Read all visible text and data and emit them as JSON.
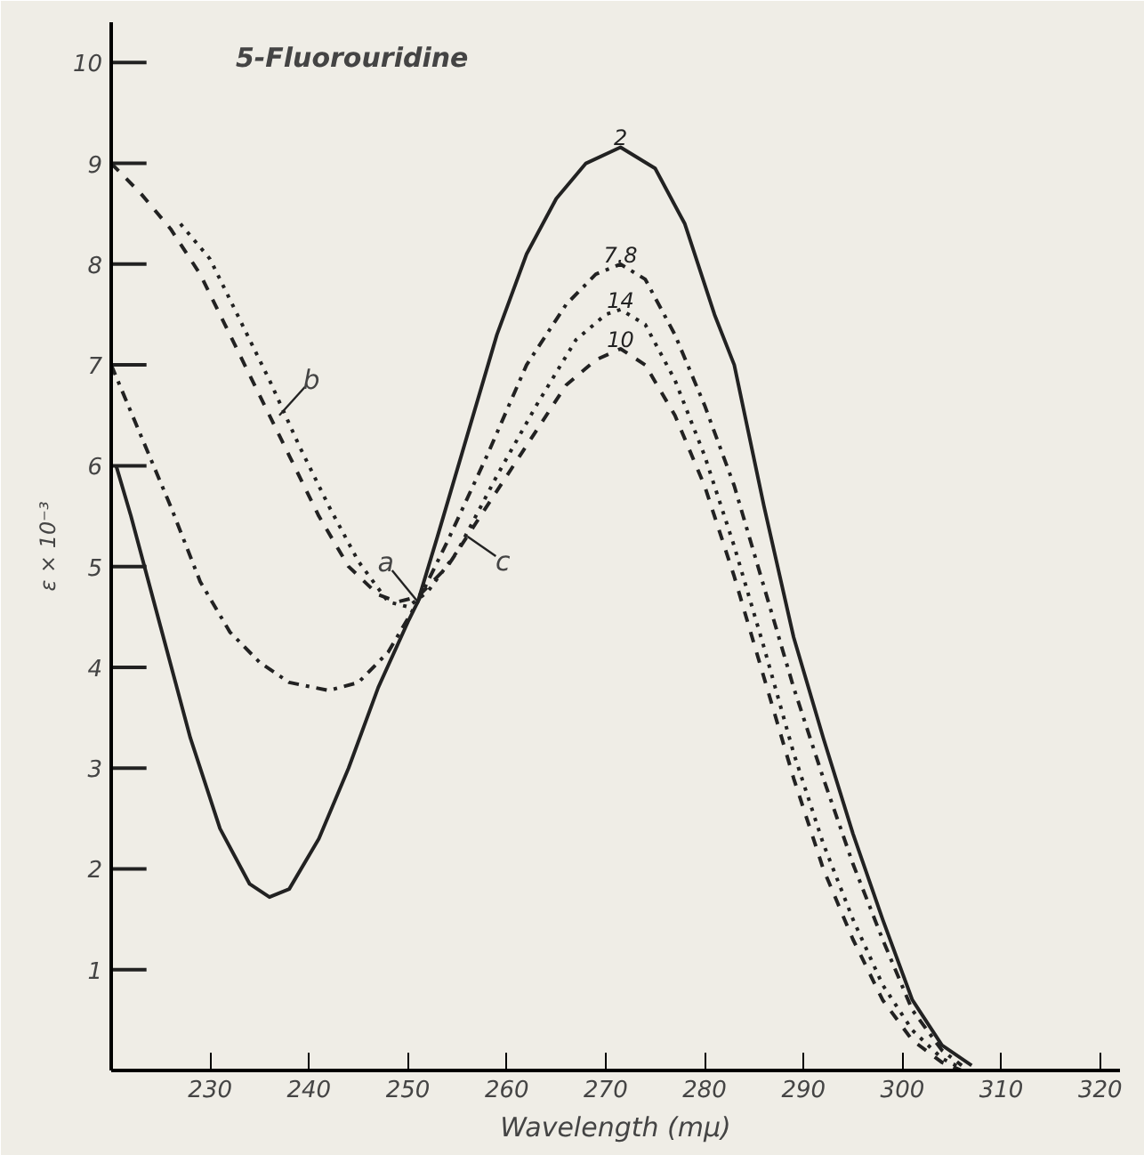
{
  "chart_data": {
    "type": "line",
    "title": "5-Fluorouridine",
    "xlabel": "Wavelength (mμ)",
    "ylabel": "ε × 10⁻³",
    "xlim": [
      220,
      322
    ],
    "ylim": [
      0,
      10.4
    ],
    "xticks": [
      230,
      240,
      250,
      260,
      270,
      280,
      290,
      300,
      310,
      320
    ],
    "yticks": [
      1,
      2,
      3,
      4,
      5,
      6,
      7,
      8,
      9,
      10
    ],
    "grid": false,
    "marker": "none",
    "annotations": [
      {
        "text": "a",
        "x": 251,
        "y": 4.65
      },
      {
        "text": "b",
        "x": 237,
        "y": 6.5
      },
      {
        "text": "c",
        "x": 256,
        "y": 5.3
      }
    ],
    "series": [
      {
        "name": "2",
        "color": "#222222",
        "line_style": "solid",
        "x": [
          220.5,
          222,
          225,
          228,
          231,
          234,
          236,
          238,
          241,
          244,
          247,
          250,
          251,
          253,
          256,
          259,
          262,
          265,
          268,
          271.5,
          275,
          278,
          281,
          283,
          286,
          289,
          292,
          295,
          298,
          301,
          304,
          307
        ],
        "values": [
          6.0,
          5.5,
          4.4,
          3.3,
          2.4,
          1.85,
          1.72,
          1.8,
          2.3,
          3.0,
          3.8,
          4.45,
          4.65,
          5.3,
          6.3,
          7.3,
          8.1,
          8.65,
          9.0,
          9.16,
          8.95,
          8.4,
          7.5,
          7.0,
          5.6,
          4.3,
          3.3,
          2.35,
          1.5,
          0.7,
          0.25,
          0.05
        ]
      },
      {
        "name": "7.8",
        "color": "#222222",
        "line_style": "dashdot",
        "x": [
          220,
          223,
          226,
          229,
          232,
          235,
          238,
          242,
          245,
          248,
          251,
          254,
          258,
          262,
          266,
          269,
          271.5,
          274,
          277,
          280,
          283,
          286,
          289,
          292,
          295,
          298,
          301,
          304,
          306
        ],
        "values": [
          7.0,
          6.3,
          5.6,
          4.85,
          4.35,
          4.05,
          3.85,
          3.77,
          3.85,
          4.15,
          4.65,
          5.25,
          6.1,
          7.0,
          7.6,
          7.9,
          8.0,
          7.85,
          7.3,
          6.6,
          5.8,
          4.8,
          3.8,
          2.9,
          2.05,
          1.3,
          0.6,
          0.2,
          0.05
        ]
      },
      {
        "name": "14",
        "color": "#222222",
        "line_style": "dotted",
        "x": [
          227,
          230,
          233,
          236,
          239,
          242,
          245,
          248,
          250,
          252,
          255,
          259,
          263,
          267,
          270,
          271.5,
          274,
          277,
          280,
          283,
          286,
          289,
          292,
          295,
          298,
          301,
          304,
          306
        ],
        "values": [
          8.4,
          8.05,
          7.45,
          6.85,
          6.2,
          5.6,
          5.05,
          4.65,
          4.6,
          4.75,
          5.15,
          5.9,
          6.6,
          7.25,
          7.5,
          7.55,
          7.4,
          6.85,
          6.1,
          5.2,
          4.2,
          3.15,
          2.25,
          1.5,
          0.85,
          0.4,
          0.12,
          0.02
        ]
      },
      {
        "name": "10",
        "color": "#222222",
        "line_style": "dashed",
        "x": [
          220,
          223,
          226,
          229,
          232,
          235,
          238,
          241,
          244,
          247,
          249,
          251,
          254,
          258,
          262,
          266,
          269,
          271.5,
          274,
          277,
          280,
          283,
          286,
          289,
          292,
          295,
          298,
          301,
          304,
          306
        ],
        "values": [
          9.0,
          8.7,
          8.35,
          7.9,
          7.3,
          6.7,
          6.1,
          5.5,
          5.0,
          4.72,
          4.65,
          4.7,
          5.0,
          5.6,
          6.2,
          6.8,
          7.05,
          7.16,
          7.0,
          6.5,
          5.8,
          4.9,
          3.9,
          2.9,
          2.0,
          1.3,
          0.7,
          0.3,
          0.08,
          0.0
        ]
      }
    ]
  }
}
